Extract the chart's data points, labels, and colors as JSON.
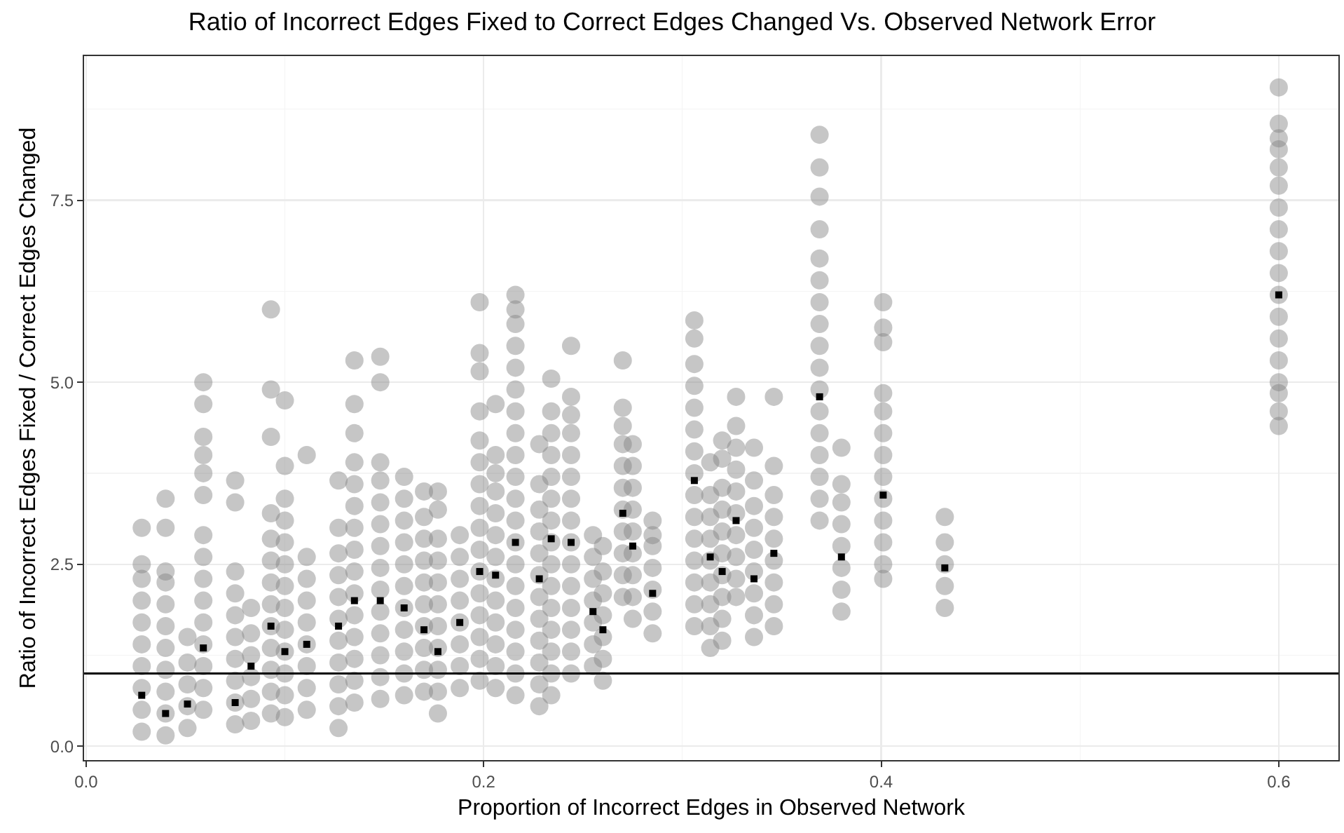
{
  "chart_data": {
    "type": "scatter",
    "title": "Ratio of Incorrect Edges Fixed to Correct Edges Changed Vs. Observed Network Error",
    "xlabel": "Proportion of Incorrect Edges in Observed Network",
    "ylabel": "Ratio of Incorrect Edges Fixed / Correct Edges Changed",
    "xlim": [
      -0.001,
      0.63
    ],
    "ylim": [
      -0.19,
      9.48
    ],
    "xticks": [
      {
        "value": 0,
        "label": "0.0"
      },
      {
        "value": 0.2,
        "label": "0.2"
      },
      {
        "value": 0.4,
        "label": "0.4"
      },
      {
        "value": 0.6,
        "label": "0.6"
      }
    ],
    "yticks": [
      {
        "value": 0,
        "label": "0.0"
      },
      {
        "value": 2.5,
        "label": "2.5"
      },
      {
        "value": 5,
        "label": "5.0"
      },
      {
        "value": 7.5,
        "label": "7.5"
      }
    ],
    "grid": true,
    "marker": "circle",
    "ref_lines": [
      {
        "axis": "y",
        "value": 1,
        "color": "#000000"
      }
    ],
    "series": [
      {
        "color": "#808080",
        "x": [
          0.028,
          0.028,
          0.028,
          0.028,
          0.028,
          0.028,
          0.028,
          0.028,
          0.028,
          0.028
        ],
        "values": [
          0.2,
          0.5,
          0.8,
          1.1,
          1.4,
          1.7,
          2.0,
          2.3,
          2.5,
          3.0
        ]
      },
      {
        "color": "#808080",
        "x": [
          0.04,
          0.04,
          0.04,
          0.04,
          0.04,
          0.04,
          0.04,
          0.04,
          0.04,
          0.04,
          0.04
        ],
        "values": [
          0.15,
          0.45,
          0.75,
          1.05,
          1.35,
          1.65,
          1.95,
          2.25,
          2.4,
          3.0,
          3.4
        ]
      },
      {
        "color": "#808080",
        "x": [
          0.051,
          0.051,
          0.051,
          0.051,
          0.051
        ],
        "values": [
          0.25,
          0.55,
          0.85,
          1.15,
          1.5
        ]
      },
      {
        "color": "#808080",
        "x": [
          0.059,
          0.059,
          0.059,
          0.059,
          0.059,
          0.059,
          0.059,
          0.059,
          0.059,
          0.059,
          0.059,
          0.059,
          0.059,
          0.059,
          0.059
        ],
        "values": [
          0.5,
          0.8,
          1.1,
          1.4,
          1.7,
          2.0,
          2.3,
          2.6,
          2.9,
          3.45,
          3.75,
          4.0,
          4.25,
          4.7,
          5.0
        ]
      },
      {
        "color": "#808080",
        "x": [
          0.075,
          0.075,
          0.075,
          0.075,
          0.075,
          0.075,
          0.075,
          0.075,
          0.075,
          0.075
        ],
        "values": [
          0.3,
          0.6,
          0.9,
          1.2,
          1.5,
          1.8,
          2.1,
          2.4,
          3.35,
          3.65
        ]
      },
      {
        "color": "#808080",
        "x": [
          0.083,
          0.083,
          0.083,
          0.083,
          0.083,
          0.083
        ],
        "values": [
          0.35,
          0.65,
          0.95,
          1.25,
          1.55,
          1.9
        ]
      },
      {
        "color": "#808080",
        "x": [
          0.093,
          0.093,
          0.093,
          0.093,
          0.093,
          0.093,
          0.093,
          0.093,
          0.093,
          0.093,
          0.093,
          0.093,
          0.093
        ],
        "values": [
          0.45,
          0.75,
          1.05,
          1.35,
          1.65,
          1.95,
          2.25,
          2.55,
          2.85,
          3.2,
          4.25,
          4.9,
          6.0
        ]
      },
      {
        "color": "#808080",
        "x": [
          0.1,
          0.1,
          0.1,
          0.1,
          0.1,
          0.1,
          0.1,
          0.1,
          0.1,
          0.1,
          0.1,
          0.1,
          0.1
        ],
        "values": [
          0.4,
          0.7,
          1.0,
          1.3,
          1.6,
          1.9,
          2.2,
          2.5,
          2.8,
          3.1,
          3.4,
          3.85,
          4.75
        ]
      },
      {
        "color": "#808080",
        "x": [
          0.111,
          0.111,
          0.111,
          0.111,
          0.111,
          0.111,
          0.111,
          0.111,
          0.111
        ],
        "values": [
          0.5,
          0.8,
          1.1,
          1.4,
          1.7,
          2.0,
          2.3,
          2.6,
          4.0
        ]
      },
      {
        "color": "#808080",
        "x": [
          0.127,
          0.127,
          0.127,
          0.127,
          0.127,
          0.127,
          0.127,
          0.127,
          0.127,
          0.127,
          0.127
        ],
        "values": [
          0.25,
          0.55,
          0.85,
          1.15,
          1.45,
          1.75,
          2.05,
          2.35,
          2.65,
          3.0,
          3.65
        ]
      },
      {
        "color": "#808080",
        "x": [
          0.135,
          0.135,
          0.135,
          0.135,
          0.135,
          0.135,
          0.135,
          0.135,
          0.135,
          0.135,
          0.135,
          0.135,
          0.135,
          0.135,
          0.135
        ],
        "values": [
          0.6,
          0.9,
          1.2,
          1.5,
          1.8,
          2.1,
          2.4,
          2.7,
          3.0,
          3.3,
          3.6,
          3.9,
          4.3,
          4.7,
          5.3
        ]
      },
      {
        "color": "#808080",
        "x": [
          0.148,
          0.148,
          0.148,
          0.148,
          0.148,
          0.148,
          0.148,
          0.148,
          0.148,
          0.148,
          0.148,
          0.148,
          0.148,
          0.148
        ],
        "values": [
          0.65,
          0.95,
          1.25,
          1.55,
          1.85,
          2.15,
          2.45,
          2.75,
          3.05,
          3.35,
          3.65,
          3.9,
          5.0,
          5.35
        ]
      },
      {
        "color": "#808080",
        "x": [
          0.16,
          0.16,
          0.16,
          0.16,
          0.16,
          0.16,
          0.16,
          0.16,
          0.16,
          0.16,
          0.16
        ],
        "values": [
          0.7,
          1.0,
          1.3,
          1.6,
          1.9,
          2.2,
          2.5,
          2.8,
          3.1,
          3.4,
          3.7
        ]
      },
      {
        "color": "#808080",
        "x": [
          0.17,
          0.17,
          0.17,
          0.17,
          0.17,
          0.17,
          0.17,
          0.17,
          0.17,
          0.17
        ],
        "values": [
          0.75,
          1.05,
          1.35,
          1.65,
          1.95,
          2.25,
          2.55,
          2.85,
          3.15,
          3.5
        ]
      },
      {
        "color": "#808080",
        "x": [
          0.177,
          0.177,
          0.177,
          0.177,
          0.177,
          0.177,
          0.177,
          0.177,
          0.177,
          0.177,
          0.177
        ],
        "values": [
          0.45,
          0.75,
          1.05,
          1.35,
          1.65,
          1.95,
          2.25,
          2.55,
          2.85,
          3.25,
          3.5
        ]
      },
      {
        "color": "#808080",
        "x": [
          0.188,
          0.188,
          0.188,
          0.188,
          0.188,
          0.188,
          0.188,
          0.188
        ],
        "values": [
          0.8,
          1.1,
          1.4,
          1.7,
          2.0,
          2.3,
          2.6,
          2.9
        ]
      },
      {
        "color": "#808080",
        "x": [
          0.198,
          0.198,
          0.198,
          0.198,
          0.198,
          0.198,
          0.198,
          0.198,
          0.198,
          0.198,
          0.198,
          0.198,
          0.198,
          0.198,
          0.198,
          0.198
        ],
        "values": [
          0.9,
          1.2,
          1.5,
          1.8,
          2.1,
          2.4,
          2.7,
          3.0,
          3.3,
          3.6,
          3.9,
          4.2,
          4.6,
          5.15,
          5.4,
          6.1
        ]
      },
      {
        "color": "#808080",
        "x": [
          0.206,
          0.206,
          0.206,
          0.206,
          0.206,
          0.206,
          0.206,
          0.206,
          0.206,
          0.206,
          0.206,
          0.206,
          0.206
        ],
        "values": [
          0.8,
          1.1,
          1.4,
          1.7,
          2.0,
          2.3,
          2.6,
          2.9,
          3.2,
          3.5,
          3.75,
          4.0,
          4.7
        ]
      },
      {
        "color": "#808080",
        "x": [
          0.216,
          0.216,
          0.216,
          0.216,
          0.216,
          0.216,
          0.216,
          0.216,
          0.216,
          0.216,
          0.216,
          0.216,
          0.216,
          0.216,
          0.216,
          0.216,
          0.216,
          0.216,
          0.216,
          0.216
        ],
        "values": [
          0.7,
          1.0,
          1.3,
          1.6,
          1.9,
          2.2,
          2.5,
          2.8,
          3.1,
          3.4,
          3.7,
          4.0,
          4.3,
          4.6,
          4.9,
          5.2,
          5.5,
          5.8,
          6.0,
          6.2
        ]
      },
      {
        "color": "#808080",
        "x": [
          0.228,
          0.228,
          0.228,
          0.228,
          0.228,
          0.228,
          0.228,
          0.228,
          0.228,
          0.228,
          0.228,
          0.228
        ],
        "values": [
          0.55,
          0.85,
          1.15,
          1.45,
          1.75,
          2.05,
          2.35,
          2.65,
          2.95,
          3.25,
          3.6,
          4.15
        ]
      },
      {
        "color": "#808080",
        "x": [
          0.234,
          0.234,
          0.234,
          0.234,
          0.234,
          0.234,
          0.234,
          0.234,
          0.234,
          0.234,
          0.234,
          0.234,
          0.234,
          0.234,
          0.234
        ],
        "values": [
          0.7,
          1.0,
          1.3,
          1.6,
          1.9,
          2.2,
          2.5,
          2.8,
          3.1,
          3.4,
          3.7,
          4.0,
          4.3,
          4.6,
          5.05
        ]
      },
      {
        "color": "#808080",
        "x": [
          0.244,
          0.244,
          0.244,
          0.244,
          0.244,
          0.244,
          0.244,
          0.244,
          0.244,
          0.244,
          0.244,
          0.244,
          0.244,
          0.244,
          0.244
        ],
        "values": [
          1.0,
          1.3,
          1.6,
          1.9,
          2.2,
          2.5,
          2.8,
          3.1,
          3.4,
          3.7,
          4.0,
          4.3,
          4.55,
          4.8,
          5.5
        ]
      },
      {
        "color": "#808080",
        "x": [
          0.255,
          0.255,
          0.255,
          0.255,
          0.255,
          0.255,
          0.255
        ],
        "values": [
          1.1,
          1.4,
          1.7,
          2.0,
          2.3,
          2.6,
          2.9
        ]
      },
      {
        "color": "#808080",
        "x": [
          0.26,
          0.26,
          0.26,
          0.26,
          0.26,
          0.26,
          0.26
        ],
        "values": [
          0.9,
          1.2,
          1.5,
          1.8,
          2.1,
          2.4,
          2.75
        ]
      },
      {
        "color": "#808080",
        "x": [
          0.27,
          0.27,
          0.27,
          0.27,
          0.27,
          0.27,
          0.27,
          0.27,
          0.27,
          0.27,
          0.27
        ],
        "values": [
          2.05,
          2.35,
          2.65,
          2.95,
          3.25,
          3.55,
          3.85,
          4.15,
          4.4,
          4.65,
          5.3
        ]
      },
      {
        "color": "#808080",
        "x": [
          0.275,
          0.275,
          0.275,
          0.275,
          0.275,
          0.275,
          0.275,
          0.275,
          0.275
        ],
        "values": [
          1.75,
          2.05,
          2.35,
          2.65,
          2.95,
          3.25,
          3.55,
          3.85,
          4.15
        ]
      },
      {
        "color": "#808080",
        "x": [
          0.285,
          0.285,
          0.285,
          0.285,
          0.285,
          0.285,
          0.285
        ],
        "values": [
          1.55,
          1.85,
          2.15,
          2.45,
          2.75,
          2.9,
          3.1
        ]
      },
      {
        "color": "#808080",
        "x": [
          0.306,
          0.306,
          0.306,
          0.306,
          0.306,
          0.306,
          0.306,
          0.306,
          0.306,
          0.306,
          0.306,
          0.306,
          0.306,
          0.306,
          0.306
        ],
        "values": [
          1.65,
          1.95,
          2.25,
          2.55,
          2.85,
          3.15,
          3.45,
          3.75,
          4.05,
          4.35,
          4.65,
          4.95,
          5.25,
          5.6,
          5.85
        ]
      },
      {
        "color": "#808080",
        "x": [
          0.314,
          0.314,
          0.314,
          0.314,
          0.314,
          0.314,
          0.314,
          0.314,
          0.314
        ],
        "values": [
          1.35,
          1.65,
          1.95,
          2.25,
          2.55,
          2.85,
          3.15,
          3.45,
          3.9
        ]
      },
      {
        "color": "#808080",
        "x": [
          0.32,
          0.32,
          0.32,
          0.32,
          0.32,
          0.32,
          0.32,
          0.32,
          0.32,
          0.32
        ],
        "values": [
          1.45,
          1.75,
          2.05,
          2.35,
          2.65,
          2.95,
          3.25,
          3.55,
          3.95,
          4.2
        ]
      },
      {
        "color": "#808080",
        "x": [
          0.327,
          0.327,
          0.327,
          0.327,
          0.327,
          0.327,
          0.327,
          0.327,
          0.327,
          0.327
        ],
        "values": [
          2.05,
          2.3,
          2.6,
          2.9,
          3.2,
          3.5,
          3.8,
          4.1,
          4.4,
          4.8
        ]
      },
      {
        "color": "#808080",
        "x": [
          0.336,
          0.336,
          0.336,
          0.336,
          0.336,
          0.336,
          0.336,
          0.336,
          0.336
        ],
        "values": [
          1.5,
          1.8,
          2.1,
          2.4,
          2.7,
          3.0,
          3.3,
          3.65,
          4.1
        ]
      },
      {
        "color": "#808080",
        "x": [
          0.346,
          0.346,
          0.346,
          0.346,
          0.346,
          0.346,
          0.346,
          0.346,
          0.346
        ],
        "values": [
          1.65,
          1.95,
          2.25,
          2.55,
          2.85,
          3.15,
          3.45,
          3.85,
          4.8
        ]
      },
      {
        "color": "#808080",
        "x": [
          0.369,
          0.369,
          0.369,
          0.369,
          0.369,
          0.369,
          0.369,
          0.369,
          0.369,
          0.369,
          0.369,
          0.369,
          0.369,
          0.369,
          0.369,
          0.369,
          0.369
        ],
        "values": [
          3.1,
          3.4,
          3.7,
          4.0,
          4.3,
          4.6,
          4.9,
          5.2,
          5.5,
          5.8,
          6.1,
          6.4,
          6.7,
          7.1,
          7.55,
          7.95,
          8.4
        ]
      },
      {
        "color": "#808080",
        "x": [
          0.38,
          0.38,
          0.38,
          0.38,
          0.38,
          0.38,
          0.38,
          0.38
        ],
        "values": [
          1.85,
          2.15,
          2.45,
          2.75,
          3.05,
          3.35,
          3.6,
          4.1
        ]
      },
      {
        "color": "#808080",
        "x": [
          0.401,
          0.401,
          0.401,
          0.401,
          0.401,
          0.401,
          0.401,
          0.401,
          0.401,
          0.401,
          0.401,
          0.401,
          0.401
        ],
        "values": [
          2.3,
          2.5,
          2.8,
          3.1,
          3.4,
          3.7,
          4.0,
          4.3,
          4.6,
          4.85,
          5.55,
          5.75,
          6.1
        ]
      },
      {
        "color": "#808080",
        "x": [
          0.432,
          0.432,
          0.432,
          0.432,
          0.432
        ],
        "values": [
          1.9,
          2.2,
          2.5,
          2.8,
          3.15
        ]
      },
      {
        "color": "#808080",
        "x": [
          0.6,
          0.6,
          0.6,
          0.6,
          0.6,
          0.6,
          0.6,
          0.6,
          0.6,
          0.6,
          0.6,
          0.6,
          0.6,
          0.6,
          0.6,
          0.6,
          0.6,
          0.6
        ],
        "values": [
          4.4,
          4.6,
          4.85,
          5.0,
          5.3,
          5.6,
          5.9,
          6.2,
          6.5,
          6.8,
          7.1,
          7.4,
          7.7,
          7.95,
          8.2,
          8.35,
          8.55,
          9.05
        ]
      },
      {
        "color": "#000000",
        "marker": "square",
        "x": [
          0.028,
          0.04,
          0.051,
          0.059,
          0.075,
          0.083,
          0.093,
          0.1,
          0.111,
          0.127,
          0.135,
          0.148,
          0.16,
          0.17,
          0.177,
          0.188,
          0.198,
          0.206,
          0.216,
          0.228,
          0.234,
          0.244,
          0.255,
          0.26,
          0.27,
          0.275,
          0.285,
          0.306,
          0.314,
          0.32,
          0.327,
          0.336,
          0.346,
          0.369,
          0.38,
          0.401,
          0.432,
          0.6
        ],
        "values": [
          0.7,
          0.45,
          0.58,
          1.35,
          0.6,
          1.1,
          1.65,
          1.3,
          1.4,
          1.65,
          2.0,
          2.0,
          1.9,
          1.6,
          1.3,
          1.7,
          2.4,
          2.35,
          2.8,
          2.3,
          2.85,
          2.8,
          1.85,
          1.6,
          3.2,
          2.75,
          2.1,
          3.65,
          2.6,
          2.4,
          3.1,
          2.3,
          2.65,
          4.8,
          2.6,
          3.45,
          2.45,
          6.2
        ]
      }
    ]
  }
}
